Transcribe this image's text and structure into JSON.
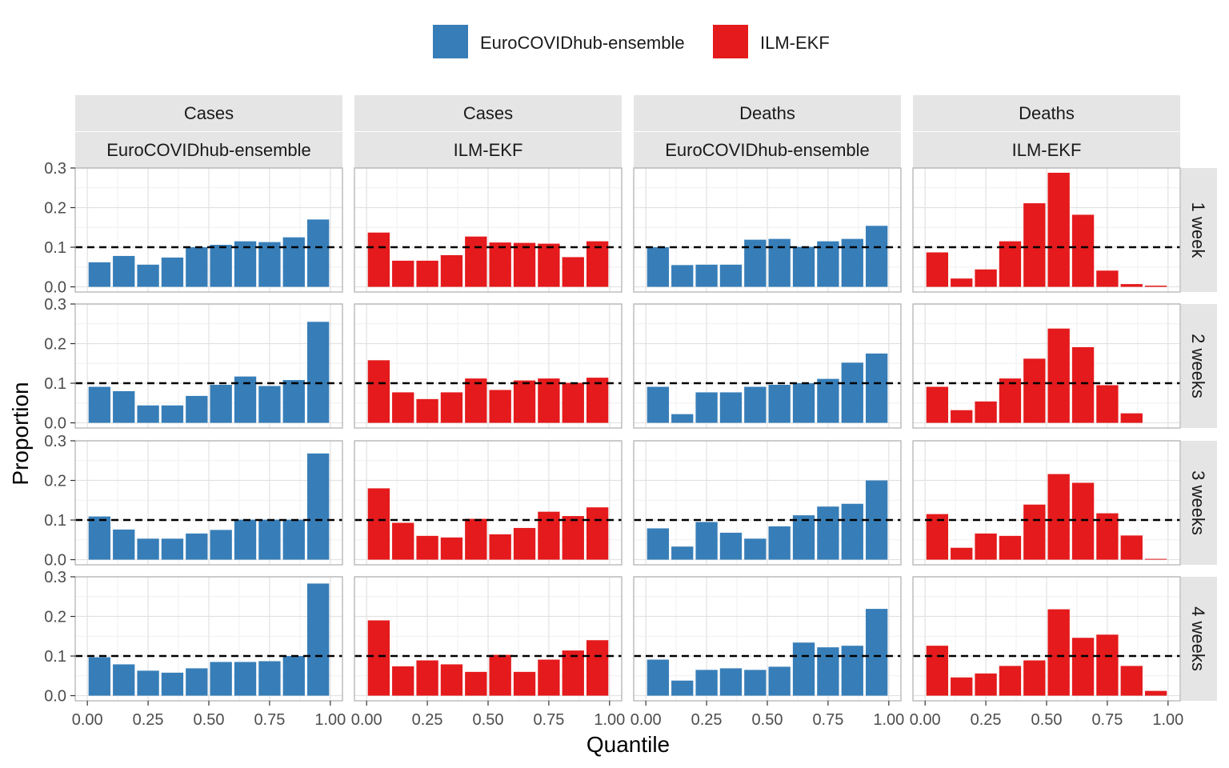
{
  "chart_data": {
    "type": "bar",
    "xlabel": "Quantile",
    "ylabel": "Proportion",
    "xlim": [
      0,
      1
    ],
    "ylim": [
      0,
      0.3
    ],
    "x_ticks": [
      "0.00",
      "0.25",
      "0.50",
      "0.75",
      "1.00"
    ],
    "y_ticks": [
      "0.0",
      "0.1",
      "0.2",
      "0.3"
    ],
    "reference_line": 0.1,
    "legend": {
      "position": "top",
      "items": [
        {
          "name": "EuroCOVIDhub-ensemble",
          "color": "#377EB8"
        },
        {
          "name": "ILM-EKF",
          "color": "#E41A1C"
        }
      ]
    },
    "bins": [
      "0.0-0.1",
      "0.1-0.2",
      "0.2-0.3",
      "0.3-0.4",
      "0.4-0.5",
      "0.5-0.6",
      "0.6-0.7",
      "0.7-0.8",
      "0.8-0.9",
      "0.9-1.0"
    ],
    "columns": [
      {
        "target": "Cases",
        "model": "EuroCOVIDhub-ensemble",
        "color": "#377EB8"
      },
      {
        "target": "Cases",
        "model": "ILM-EKF",
        "color": "#E41A1C"
      },
      {
        "target": "Deaths",
        "model": "EuroCOVIDhub-ensemble",
        "color": "#377EB8"
      },
      {
        "target": "Deaths",
        "model": "ILM-EKF",
        "color": "#E41A1C"
      }
    ],
    "rows": [
      "1 week",
      "2 weeks",
      "3 weeks",
      "4 weeks"
    ],
    "values": [
      [
        [
          0.062,
          0.078,
          0.056,
          0.074,
          0.1,
          0.106,
          0.115,
          0.113,
          0.125,
          0.17
        ],
        [
          0.137,
          0.066,
          0.066,
          0.08,
          0.127,
          0.112,
          0.111,
          0.109,
          0.075,
          0.115
        ],
        [
          0.1,
          0.055,
          0.056,
          0.056,
          0.119,
          0.121,
          0.101,
          0.115,
          0.121,
          0.154
        ],
        [
          0.087,
          0.021,
          0.044,
          0.115,
          0.211,
          0.288,
          0.182,
          0.041,
          0.007,
          0.003
        ]
      ],
      [
        [
          0.091,
          0.08,
          0.044,
          0.044,
          0.068,
          0.096,
          0.117,
          0.093,
          0.108,
          0.255
        ],
        [
          0.158,
          0.077,
          0.06,
          0.077,
          0.112,
          0.083,
          0.107,
          0.112,
          0.101,
          0.114
        ],
        [
          0.091,
          0.022,
          0.077,
          0.077,
          0.091,
          0.096,
          0.1,
          0.111,
          0.152,
          0.175
        ],
        [
          0.091,
          0.032,
          0.054,
          0.112,
          0.162,
          0.238,
          0.191,
          0.095,
          0.024,
          0.0
        ]
      ],
      [
        [
          0.109,
          0.076,
          0.053,
          0.053,
          0.066,
          0.075,
          0.101,
          0.101,
          0.101,
          0.268
        ],
        [
          0.18,
          0.093,
          0.06,
          0.056,
          0.103,
          0.064,
          0.08,
          0.121,
          0.11,
          0.132
        ],
        [
          0.079,
          0.033,
          0.095,
          0.068,
          0.053,
          0.084,
          0.112,
          0.134,
          0.141,
          0.2
        ],
        [
          0.115,
          0.03,
          0.066,
          0.06,
          0.139,
          0.216,
          0.194,
          0.117,
          0.061,
          0.002
        ]
      ],
      [
        [
          0.097,
          0.079,
          0.063,
          0.058,
          0.069,
          0.085,
          0.085,
          0.087,
          0.1,
          0.283
        ],
        [
          0.19,
          0.074,
          0.089,
          0.079,
          0.06,
          0.103,
          0.06,
          0.091,
          0.114,
          0.14
        ],
        [
          0.091,
          0.038,
          0.065,
          0.069,
          0.065,
          0.073,
          0.134,
          0.122,
          0.126,
          0.219
        ],
        [
          0.126,
          0.046,
          0.056,
          0.075,
          0.089,
          0.218,
          0.146,
          0.154,
          0.075,
          0.012
        ]
      ]
    ]
  }
}
